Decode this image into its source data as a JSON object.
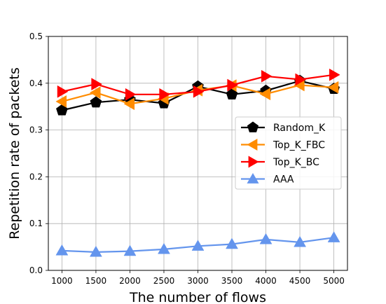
{
  "chart_data": {
    "type": "line",
    "xlabel": "The number of flows",
    "ylabel": "Repetition rate of packets",
    "x": [
      1000,
      1500,
      2000,
      2500,
      3000,
      3500,
      4000,
      4500,
      5000
    ],
    "xlim": [
      800,
      5200
    ],
    "ylim": [
      0,
      0.5
    ],
    "yticks": [
      0.0,
      0.1,
      0.2,
      0.3,
      0.4,
      0.5
    ],
    "ytick_labels": [
      "0.0",
      "0.1",
      "0.2",
      "0.3",
      "0.4",
      "0.5"
    ],
    "grid": true,
    "legend_position": "center-right",
    "series": [
      {
        "name": "Random_K",
        "color": "#000000",
        "marker": "pentagon",
        "values": [
          0.342,
          0.359,
          0.365,
          0.357,
          0.393,
          0.376,
          0.384,
          0.405,
          0.388
        ]
      },
      {
        "name": "Top_K_FBC",
        "color": "#ff8c00",
        "marker": "triangle-left",
        "values": [
          0.361,
          0.38,
          0.356,
          0.367,
          0.385,
          0.395,
          0.377,
          0.396,
          0.391
        ]
      },
      {
        "name": "Top_K_BC",
        "color": "#ff0000",
        "marker": "triangle-right",
        "values": [
          0.382,
          0.398,
          0.376,
          0.376,
          0.382,
          0.396,
          0.415,
          0.408,
          0.418
        ]
      },
      {
        "name": "AAA",
        "color": "#6495ed",
        "marker": "triangle-up",
        "values": [
          0.042,
          0.039,
          0.041,
          0.045,
          0.052,
          0.056,
          0.066,
          0.06,
          0.07
        ]
      }
    ]
  }
}
